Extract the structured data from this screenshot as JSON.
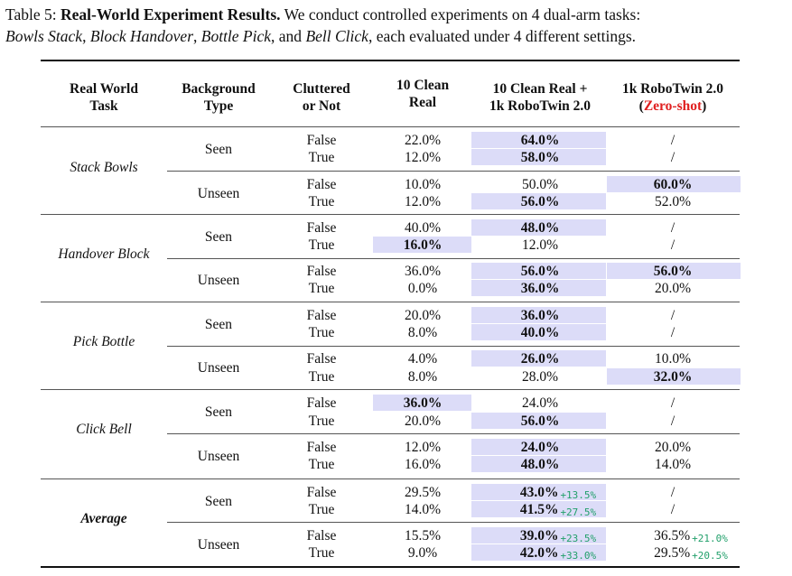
{
  "caption": {
    "label": "Table 5: ",
    "title": "Real-World Experiment Results.",
    "text1": " We conduct controlled experiments on 4 dual-arm tasks:",
    "task1": "Bowls Stack",
    "sep1": ", ",
    "task2": "Block Handover",
    "sep2": ", ",
    "task3": "Bottle Pick",
    "sep3": ", and ",
    "task4": "Bell Click",
    "text2": ", each evaluated under 4 different settings."
  },
  "headers": {
    "task_l1": "Real World",
    "task_l2": "Task",
    "bg_l1": "Background",
    "bg_l2": "Type",
    "clut_l1": "Cluttered",
    "clut_l2": "or Not",
    "c10_l1": "10 Clean",
    "c10_l2": "Real",
    "mix_l1": "10 Clean Real +",
    "mix_l2": "1k RoboTwin 2.0",
    "rt_l1": "1k RoboTwin 2.0",
    "rt_open": "(",
    "rt_zero": "Zero-shot",
    "rt_close": ")"
  },
  "tasks": [
    "Stack Bowls",
    "Handover Block",
    "Pick Bottle",
    "Click Bell",
    "Average"
  ],
  "bg": {
    "seen": "Seen",
    "unseen": "Unseen"
  },
  "rows": [
    [
      "False",
      "22.0%",
      "64.0%",
      "/"
    ],
    [
      "True",
      "12.0%",
      "58.0%",
      "/"
    ],
    [
      "False",
      "10.0%",
      "50.0%",
      "60.0%"
    ],
    [
      "True",
      "12.0%",
      "56.0%",
      "52.0%"
    ],
    [
      "False",
      "40.0%",
      "48.0%",
      "/"
    ],
    [
      "True",
      "16.0%",
      "12.0%",
      "/"
    ],
    [
      "False",
      "36.0%",
      "56.0%",
      "56.0%"
    ],
    [
      "True",
      "0.0%",
      "36.0%",
      "20.0%"
    ],
    [
      "False",
      "20.0%",
      "36.0%",
      "/"
    ],
    [
      "True",
      "8.0%",
      "40.0%",
      "/"
    ],
    [
      "False",
      "4.0%",
      "26.0%",
      "10.0%"
    ],
    [
      "True",
      "8.0%",
      "28.0%",
      "32.0%"
    ],
    [
      "False",
      "36.0%",
      "24.0%",
      "/"
    ],
    [
      "True",
      "20.0%",
      "56.0%",
      "/"
    ],
    [
      "False",
      "12.0%",
      "24.0%",
      "20.0%"
    ],
    [
      "True",
      "16.0%",
      "48.0%",
      "14.0%"
    ],
    [
      "False",
      "29.5%",
      "43.0%",
      "/"
    ],
    [
      "True",
      "14.0%",
      "41.5%",
      "/"
    ],
    [
      "False",
      "15.5%",
      "39.0%",
      "36.5%"
    ],
    [
      "True",
      "9.0%",
      "42.0%",
      "29.5%"
    ]
  ],
  "deltas": {
    "avg_seen_false_mix": "+13.5%",
    "avg_seen_true_mix": "+27.5%",
    "avg_unseen_false_mix": "+23.5%",
    "avg_unseen_true_mix": "+33.0%",
    "avg_unseen_false_rt": "+21.0%",
    "avg_unseen_true_rt": "+20.5%"
  },
  "highlight_color": "#dcdcf8",
  "delta_color": "#22a06b",
  "zero_shot_color": "#e02020"
}
